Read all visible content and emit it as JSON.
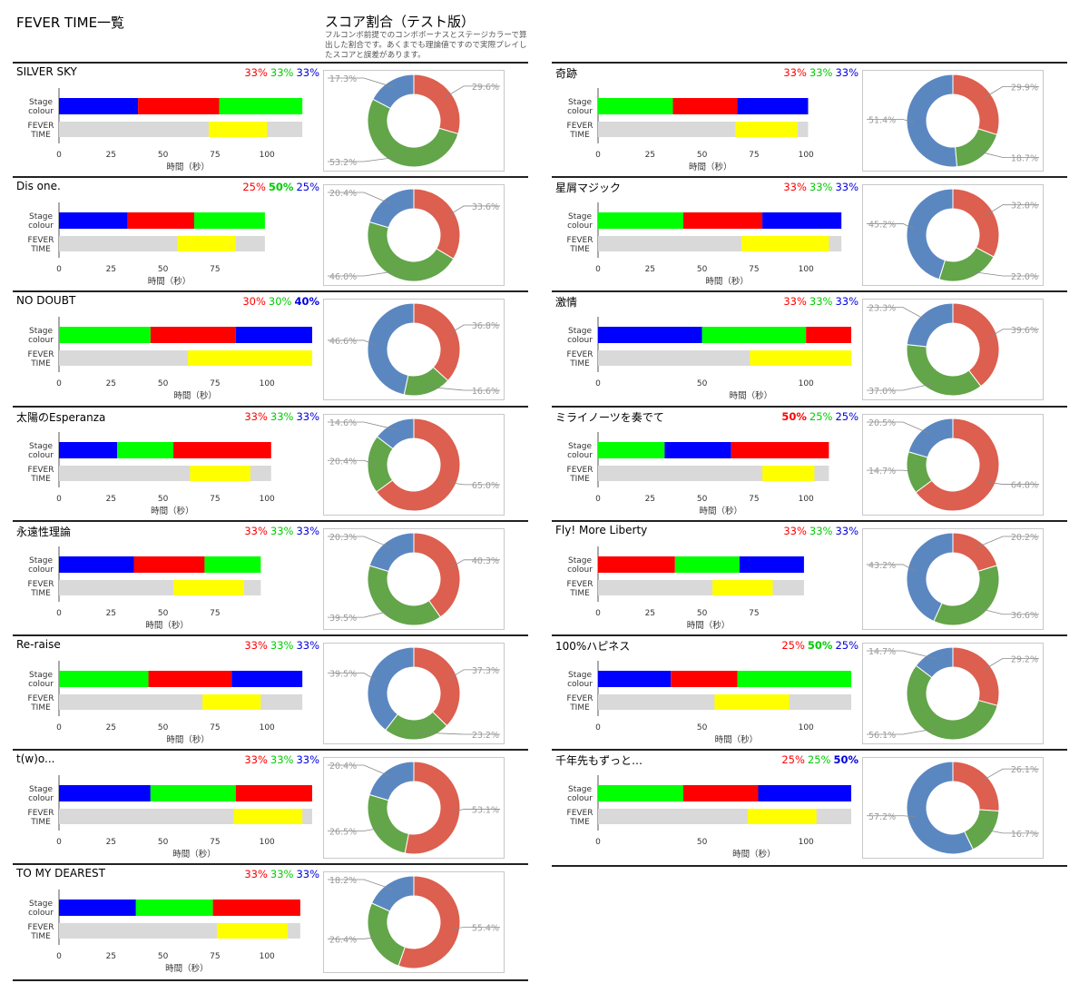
{
  "header": {
    "title": "FEVER TIME一覧",
    "note_title": "スコア割合（テスト版）",
    "note_text": "フルコンボ前提でのコンボボーナスとステージカラーで算出した割合です。あくまでも理論値ですので実際プレイしたスコアと誤差があります。"
  },
  "labels": {
    "stage_colour_line1": "Stage",
    "stage_colour_line2": "colour",
    "fever_line1": "FEVER",
    "fever_line2": "TIME",
    "x_axis": "時間（秒）"
  },
  "colors": {
    "red": "#ff0000",
    "green": "#00ff00",
    "blue": "#0000ff",
    "fever": "#ffff00",
    "track": "#d9d9d9",
    "donut_red": "#dc5f4f",
    "donut_green": "#63a549",
    "donut_blue": "#5b87c1"
  },
  "chart_data": [
    {
      "type": "bar",
      "title": "SILVER SKY",
      "percentages": [
        "33%",
        "33%",
        "33%"
      ],
      "bold": [],
      "xlabel": "時間（秒）",
      "xticks": [
        0,
        25,
        50,
        75,
        100
      ],
      "xlim": [
        0,
        100
      ],
      "stage_segments": [
        {
          "color": "blue",
          "start": 0,
          "end": 38
        },
        {
          "color": "red",
          "start": 38,
          "end": 77
        },
        {
          "color": "green",
          "start": 77,
          "end": 117
        }
      ],
      "fever_time": {
        "start": 72,
        "end": 100
      },
      "song_length": 117,
      "donut": {
        "type": "pie",
        "hole": true,
        "values": [
          {
            "color": "red",
            "value": 29.6,
            "label": "29.6%"
          },
          {
            "color": "green",
            "value": 53.2,
            "label": "53.2%"
          },
          {
            "color": "blue",
            "value": 17.3,
            "label": "17.3%"
          }
        ]
      }
    },
    {
      "type": "bar",
      "title": "Dis one.",
      "percentages": [
        "25%",
        "50%",
        "25%"
      ],
      "bold": [
        1
      ],
      "xlabel": "時間（秒）",
      "xticks": [
        0,
        25,
        50,
        75
      ],
      "xlim": [
        0,
        75
      ],
      "stage_segments": [
        {
          "color": "blue",
          "start": 0,
          "end": 33
        },
        {
          "color": "red",
          "start": 33,
          "end": 65
        },
        {
          "color": "green",
          "start": 65,
          "end": 99
        }
      ],
      "fever_time": {
        "start": 57,
        "end": 85
      },
      "song_length": 99,
      "donut": {
        "type": "pie",
        "hole": true,
        "values": [
          {
            "color": "red",
            "value": 33.6,
            "label": "33.6%"
          },
          {
            "color": "green",
            "value": 46.0,
            "label": "46.0%"
          },
          {
            "color": "blue",
            "value": 20.4,
            "label": "20.4%"
          }
        ]
      }
    },
    {
      "type": "bar",
      "title": "NO DOUBT",
      "percentages": [
        "30%",
        "30%",
        "40%"
      ],
      "bold": [
        2
      ],
      "xlabel": "時間（秒）",
      "xticks": [
        0,
        25,
        50,
        75,
        100
      ],
      "xlim": [
        0,
        100
      ],
      "stage_segments": [
        {
          "color": "green",
          "start": 0,
          "end": 44
        },
        {
          "color": "red",
          "start": 44,
          "end": 85
        },
        {
          "color": "blue",
          "start": 85,
          "end": 124
        }
      ],
      "fever_time": {
        "start": 62,
        "end": 124
      },
      "song_length": 124,
      "donut": {
        "type": "pie",
        "hole": true,
        "values": [
          {
            "color": "red",
            "value": 36.8,
            "label": "36.8%"
          },
          {
            "color": "green",
            "value": 16.6,
            "label": "16.6%"
          },
          {
            "color": "blue",
            "value": 46.6,
            "label": "46.6%"
          }
        ]
      }
    },
    {
      "type": "bar",
      "title": "太陽のEsperanza",
      "percentages": [
        "33%",
        "33%",
        "33%"
      ],
      "bold": [],
      "xlabel": "時間（秒）",
      "xticks": [
        0,
        25,
        50,
        75,
        100
      ],
      "xlim": [
        0,
        100
      ],
      "stage_segments": [
        {
          "color": "blue",
          "start": 0,
          "end": 28
        },
        {
          "color": "green",
          "start": 28,
          "end": 55
        },
        {
          "color": "red",
          "start": 55,
          "end": 102
        }
      ],
      "fever_time": {
        "start": 63,
        "end": 92
      },
      "song_length": 102,
      "donut": {
        "type": "pie",
        "hole": true,
        "values": [
          {
            "color": "red",
            "value": 65.0,
            "label": "65.0%"
          },
          {
            "color": "green",
            "value": 20.4,
            "label": "20.4%"
          },
          {
            "color": "blue",
            "value": 14.6,
            "label": "14.6%"
          }
        ]
      }
    },
    {
      "type": "bar",
      "title": "永遠性理論",
      "percentages": [
        "33%",
        "33%",
        "33%"
      ],
      "bold": [],
      "xlabel": "時間（秒）",
      "xticks": [
        0,
        25,
        50,
        75
      ],
      "xlim": [
        0,
        75
      ],
      "stage_segments": [
        {
          "color": "blue",
          "start": 0,
          "end": 36
        },
        {
          "color": "red",
          "start": 36,
          "end": 70
        },
        {
          "color": "green",
          "start": 70,
          "end": 97
        }
      ],
      "fever_time": {
        "start": 55,
        "end": 89
      },
      "song_length": 97,
      "donut": {
        "type": "pie",
        "hole": true,
        "values": [
          {
            "color": "red",
            "value": 40.3,
            "label": "40.3%"
          },
          {
            "color": "green",
            "value": 39.5,
            "label": "39.5%"
          },
          {
            "color": "blue",
            "value": 20.3,
            "label": "20.3%"
          }
        ]
      }
    },
    {
      "type": "bar",
      "title": "Re-raise",
      "percentages": [
        "33%",
        "33%",
        "33%"
      ],
      "bold": [],
      "xlabel": "時間（秒）",
      "xticks": [
        0,
        25,
        50,
        75,
        100
      ],
      "xlim": [
        0,
        100
      ],
      "stage_segments": [
        {
          "color": "green",
          "start": 0,
          "end": 43
        },
        {
          "color": "red",
          "start": 43,
          "end": 83
        },
        {
          "color": "blue",
          "start": 83,
          "end": 117
        }
      ],
      "fever_time": {
        "start": 69,
        "end": 97
      },
      "song_length": 117,
      "donut": {
        "type": "pie",
        "hole": true,
        "values": [
          {
            "color": "red",
            "value": 37.3,
            "label": "37.3%"
          },
          {
            "color": "green",
            "value": 23.2,
            "label": "23.2%"
          },
          {
            "color": "blue",
            "value": 39.5,
            "label": "39.5%"
          }
        ]
      }
    },
    {
      "type": "bar",
      "title": "t(w)o...",
      "percentages": [
        "33%",
        "33%",
        "33%"
      ],
      "bold": [],
      "xlabel": "時間（秒）",
      "xticks": [
        0,
        25,
        50,
        75,
        100
      ],
      "xlim": [
        0,
        100
      ],
      "stage_segments": [
        {
          "color": "blue",
          "start": 0,
          "end": 44
        },
        {
          "color": "green",
          "start": 44,
          "end": 85
        },
        {
          "color": "red",
          "start": 85,
          "end": 123
        }
      ],
      "fever_time": {
        "start": 84,
        "end": 117
      },
      "song_length": 123,
      "donut": {
        "type": "pie",
        "hole": true,
        "values": [
          {
            "color": "red",
            "value": 53.1,
            "label": "53.1%"
          },
          {
            "color": "green",
            "value": 26.5,
            "label": "26.5%"
          },
          {
            "color": "blue",
            "value": 20.4,
            "label": "20.4%"
          }
        ]
      }
    },
    {
      "type": "bar",
      "title": "TO MY DEAREST",
      "percentages": [
        "33%",
        "33%",
        "33%"
      ],
      "bold": [],
      "xlabel": "時間（秒）",
      "xticks": [
        0,
        25,
        50,
        75,
        100
      ],
      "xlim": [
        0,
        100
      ],
      "stage_segments": [
        {
          "color": "blue",
          "start": 0,
          "end": 37
        },
        {
          "color": "green",
          "start": 37,
          "end": 74
        },
        {
          "color": "red",
          "start": 74,
          "end": 116
        }
      ],
      "fever_time": {
        "start": 76,
        "end": 110
      },
      "song_length": 116,
      "donut": {
        "type": "pie",
        "hole": true,
        "values": [
          {
            "color": "red",
            "value": 55.4,
            "label": "55.4%"
          },
          {
            "color": "green",
            "value": 26.4,
            "label": "26.4%"
          },
          {
            "color": "blue",
            "value": 18.2,
            "label": "18.2%"
          }
        ]
      }
    },
    {
      "type": "bar",
      "title": "奇跡",
      "percentages": [
        "33%",
        "33%",
        "33%"
      ],
      "bold": [],
      "xlabel": "時間（秒）",
      "xticks": [
        0,
        25,
        50,
        75,
        100
      ],
      "xlim": [
        0,
        100
      ],
      "stage_segments": [
        {
          "color": "green",
          "start": 0,
          "end": 36
        },
        {
          "color": "red",
          "start": 36,
          "end": 67
        },
        {
          "color": "blue",
          "start": 67,
          "end": 101
        }
      ],
      "fever_time": {
        "start": 66,
        "end": 96
      },
      "song_length": 101,
      "donut": {
        "type": "pie",
        "hole": true,
        "values": [
          {
            "color": "red",
            "value": 29.9,
            "label": "29.9%"
          },
          {
            "color": "green",
            "value": 18.7,
            "label": "18.7%"
          },
          {
            "color": "blue",
            "value": 51.4,
            "label": "51.4%"
          }
        ]
      }
    },
    {
      "type": "bar",
      "title": "星屑マジック",
      "percentages": [
        "33%",
        "33%",
        "33%"
      ],
      "bold": [],
      "xlabel": "時間（秒）",
      "xticks": [
        0,
        25,
        50,
        75,
        100
      ],
      "xlim": [
        0,
        100
      ],
      "stage_segments": [
        {
          "color": "green",
          "start": 0,
          "end": 41
        },
        {
          "color": "red",
          "start": 41,
          "end": 79
        },
        {
          "color": "blue",
          "start": 79,
          "end": 117
        }
      ],
      "fever_time": {
        "start": 69,
        "end": 111
      },
      "song_length": 117,
      "donut": {
        "type": "pie",
        "hole": true,
        "values": [
          {
            "color": "red",
            "value": 32.8,
            "label": "32.8%"
          },
          {
            "color": "green",
            "value": 22.0,
            "label": "22.0%"
          },
          {
            "color": "blue",
            "value": 45.2,
            "label": "45.2%"
          }
        ]
      }
    },
    {
      "type": "bar",
      "title": "激情",
      "percentages": [
        "33%",
        "33%",
        "33%"
      ],
      "bold": [],
      "xlabel": "時間（秒）",
      "xticks": [
        0,
        50,
        100
      ],
      "xlim": [
        0,
        100
      ],
      "stage_segments": [
        {
          "color": "blue",
          "start": 0,
          "end": 50
        },
        {
          "color": "green",
          "start": 50,
          "end": 100
        },
        {
          "color": "red",
          "start": 100,
          "end": 140
        }
      ],
      "fever_time": {
        "start": 73,
        "end": 125
      },
      "song_length": 140,
      "donut": {
        "type": "pie",
        "hole": true,
        "values": [
          {
            "color": "red",
            "value": 39.6,
            "label": "39.6%"
          },
          {
            "color": "green",
            "value": 37.0,
            "label": "37.0%"
          },
          {
            "color": "blue",
            "value": 23.3,
            "label": "23.3%"
          }
        ]
      }
    },
    {
      "type": "bar",
      "title": "ミライノーツを奏でて",
      "percentages": [
        "50%",
        "25%",
        "25%"
      ],
      "bold": [
        0
      ],
      "xlabel": "時間（秒）",
      "xticks": [
        0,
        25,
        50,
        75,
        100
      ],
      "xlim": [
        0,
        100
      ],
      "stage_segments": [
        {
          "color": "green",
          "start": 0,
          "end": 32
        },
        {
          "color": "blue",
          "start": 32,
          "end": 64
        },
        {
          "color": "red",
          "start": 64,
          "end": 111
        }
      ],
      "fever_time": {
        "start": 79,
        "end": 104
      },
      "song_length": 111,
      "donut": {
        "type": "pie",
        "hole": true,
        "values": [
          {
            "color": "red",
            "value": 64.8,
            "label": "64.8%"
          },
          {
            "color": "green",
            "value": 14.7,
            "label": "14.7%"
          },
          {
            "color": "blue",
            "value": 20.5,
            "label": "20.5%"
          }
        ]
      }
    },
    {
      "type": "bar",
      "title": "Fly! More Liberty",
      "percentages": [
        "33%",
        "33%",
        "33%"
      ],
      "bold": [],
      "xlabel": "時間（秒）",
      "xticks": [
        0,
        25,
        50,
        75
      ],
      "xlim": [
        0,
        75
      ],
      "stage_segments": [
        {
          "color": "red",
          "start": 0,
          "end": 37
        },
        {
          "color": "green",
          "start": 37,
          "end": 68
        },
        {
          "color": "blue",
          "start": 68,
          "end": 99
        }
      ],
      "fever_time": {
        "start": 55,
        "end": 84
      },
      "song_length": 99,
      "donut": {
        "type": "pie",
        "hole": true,
        "values": [
          {
            "color": "red",
            "value": 20.2,
            "label": "20.2%"
          },
          {
            "color": "green",
            "value": 36.6,
            "label": "36.6%"
          },
          {
            "color": "blue",
            "value": 43.2,
            "label": "43.2%"
          }
        ]
      }
    },
    {
      "type": "bar",
      "title": "100%ハピネス",
      "percentages": [
        "25%",
        "50%",
        "25%"
      ],
      "bold": [
        1
      ],
      "xlabel": "時間（秒）",
      "xticks": [
        0,
        50,
        100
      ],
      "xlim": [
        0,
        100
      ],
      "stage_segments": [
        {
          "color": "blue",
          "start": 0,
          "end": 35
        },
        {
          "color": "red",
          "start": 35,
          "end": 67
        },
        {
          "color": "green",
          "start": 67,
          "end": 126
        }
      ],
      "fever_time": {
        "start": 56,
        "end": 92
      },
      "song_length": 126,
      "donut": {
        "type": "pie",
        "hole": true,
        "values": [
          {
            "color": "red",
            "value": 29.2,
            "label": "29.2%"
          },
          {
            "color": "green",
            "value": 56.1,
            "label": "56.1%"
          },
          {
            "color": "blue",
            "value": 14.7,
            "label": "14.7%"
          }
        ]
      }
    },
    {
      "type": "bar",
      "title": "千年先もずっと…",
      "percentages": [
        "25%",
        "25%",
        "50%"
      ],
      "bold": [
        2
      ],
      "xlabel": "時間（秒）",
      "xticks": [
        0,
        50,
        100
      ],
      "xlim": [
        0,
        100
      ],
      "stage_segments": [
        {
          "color": "green",
          "start": 0,
          "end": 41
        },
        {
          "color": "red",
          "start": 41,
          "end": 77
        },
        {
          "color": "blue",
          "start": 77,
          "end": 143
        }
      ],
      "fever_time": {
        "start": 72,
        "end": 105
      },
      "song_length": 143,
      "donut": {
        "type": "pie",
        "hole": true,
        "values": [
          {
            "color": "red",
            "value": 26.1,
            "label": "26.1%"
          },
          {
            "color": "green",
            "value": 16.7,
            "label": "16.7%"
          },
          {
            "color": "blue",
            "value": 57.2,
            "label": "57.2%"
          }
        ]
      }
    }
  ]
}
